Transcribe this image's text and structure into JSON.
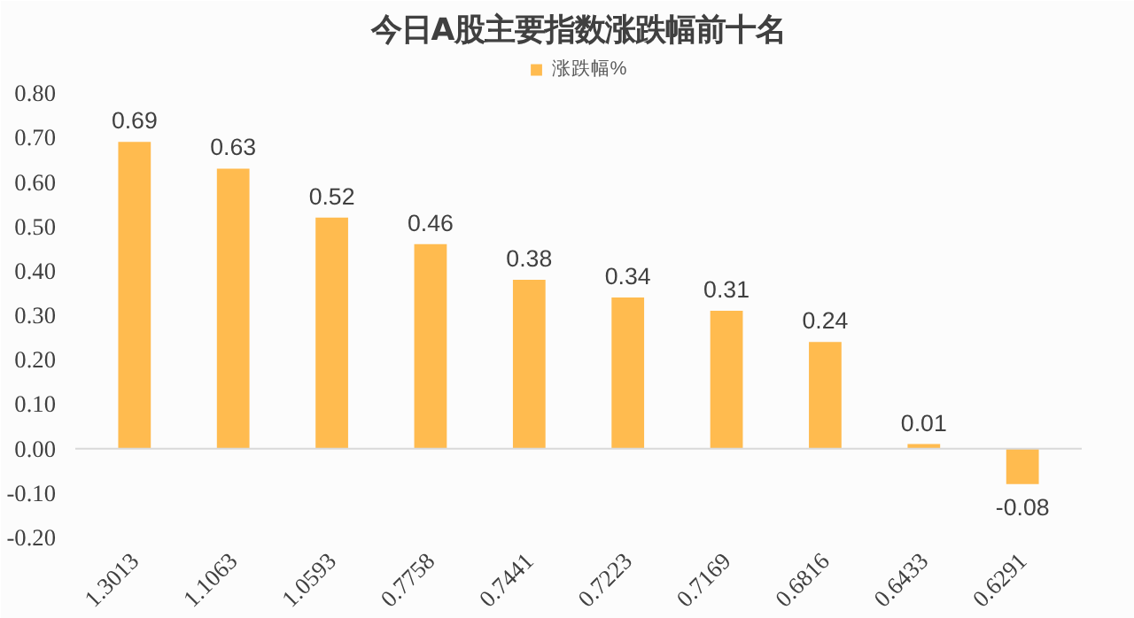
{
  "chart_data": {
    "type": "bar",
    "title": "今日A股主要指数涨跌幅前十名",
    "categories": [
      "1.3013",
      "1.1063",
      "1.0593",
      "0.7758",
      "0.7441",
      "0.7223",
      "0.7169",
      "0.6816",
      "0.6433",
      "0.6291"
    ],
    "series": [
      {
        "name": "涨跌幅%",
        "color": "#ffbb4f",
        "values": [
          0.69,
          0.63,
          0.52,
          0.46,
          0.38,
          0.34,
          0.31,
          0.24,
          0.01,
          -0.08
        ]
      }
    ],
    "ylim": [
      -0.2,
      0.8
    ],
    "yticks": [
      {
        "value": -0.2,
        "label": "-0.20"
      },
      {
        "value": -0.1,
        "label": "-0.10"
      },
      {
        "value": 0,
        "label": "0.00"
      },
      {
        "value": 0.1,
        "label": "0.10"
      },
      {
        "value": 0.2,
        "label": "0.20"
      },
      {
        "value": 0.3,
        "label": "0.30"
      },
      {
        "value": 0.4,
        "label": "0.40"
      },
      {
        "value": 0.5,
        "label": "0.50"
      },
      {
        "value": 0.6,
        "label": "0.60"
      },
      {
        "value": 0.7,
        "label": "0.70"
      },
      {
        "value": 0.8,
        "label": "0.80"
      }
    ],
    "legend": "top",
    "data_labels": true
  }
}
